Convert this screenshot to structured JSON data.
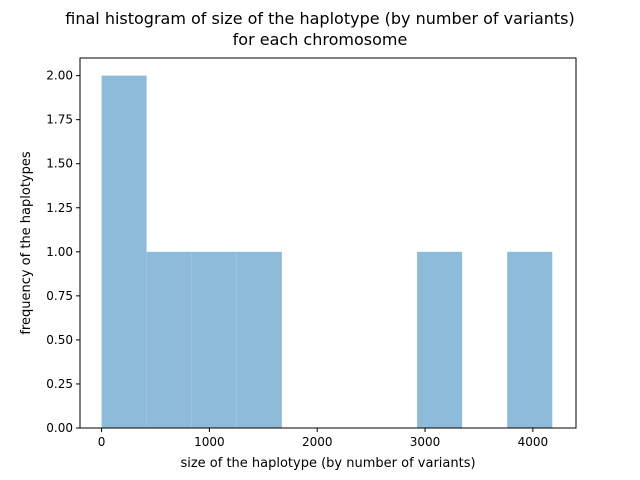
{
  "chart_data": {
    "type": "bar",
    "title_lines": [
      "final histogram of size of the haplotype (by number of variants)",
      "for each chromosome"
    ],
    "xlabel": "size of the haplotype (by number of variants)",
    "ylabel": "frequency of the haplotypes",
    "xlim": [
      -200,
      4400
    ],
    "ylim": [
      0,
      2.1
    ],
    "xticks": [
      0,
      1000,
      2000,
      3000,
      4000
    ],
    "yticks": [
      0.0,
      0.25,
      0.5,
      0.75,
      1.0,
      1.25,
      1.5,
      1.75,
      2.0
    ],
    "ytick_labels": [
      "0.00",
      "0.25",
      "0.50",
      "0.75",
      "1.00",
      "1.25",
      "1.50",
      "1.75",
      "2.00"
    ],
    "bins": [
      {
        "start": 0,
        "end": 418,
        "count": 2
      },
      {
        "start": 418,
        "end": 836,
        "count": 1
      },
      {
        "start": 836,
        "end": 1254,
        "count": 1
      },
      {
        "start": 1254,
        "end": 1672,
        "count": 1
      },
      {
        "start": 1672,
        "end": 2090,
        "count": 0
      },
      {
        "start": 2090,
        "end": 2508,
        "count": 0
      },
      {
        "start": 2508,
        "end": 2926,
        "count": 0
      },
      {
        "start": 2926,
        "end": 3344,
        "count": 1
      },
      {
        "start": 3344,
        "end": 3762,
        "count": 0
      },
      {
        "start": 3762,
        "end": 4180,
        "count": 1
      }
    ],
    "bar_color": "#8fbbda",
    "grid": false
  }
}
